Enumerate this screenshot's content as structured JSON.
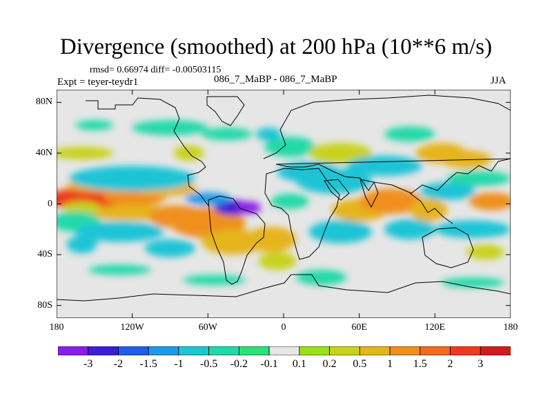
{
  "title": "Divergence (smoothed) at 200 hPa (10**6 m/s)",
  "stats_line": "rmsd= 0.66974 diff= -0.00503115",
  "expt_line": "Expt = teyer-teydr1",
  "experiments_line": "086_7_MaBP - 086_7_MaBP",
  "season": "JJA",
  "map": {
    "lon_range": [
      -180,
      180
    ],
    "lat_range": [
      -90,
      90
    ],
    "y_ticks": [
      {
        "lat": 80,
        "label": "80N"
      },
      {
        "lat": 40,
        "label": "40N"
      },
      {
        "lat": 0,
        "label": "0"
      },
      {
        "lat": -40,
        "label": "40S"
      },
      {
        "lat": -80,
        "label": "80S"
      }
    ],
    "x_ticks": [
      {
        "lon": -180,
        "label": "180"
      },
      {
        "lon": -120,
        "label": "120W"
      },
      {
        "lon": -60,
        "label": "60W"
      },
      {
        "lon": 0,
        "label": "0"
      },
      {
        "lon": 60,
        "label": "60E"
      },
      {
        "lon": 120,
        "label": "120E"
      },
      {
        "lon": 180,
        "label": "180"
      }
    ]
  },
  "colorbar": {
    "colors": [
      "#8a1ee6",
      "#3b1fd6",
      "#1f5ee8",
      "#1e9be8",
      "#1fc4d6",
      "#22d9a8",
      "#2ee07a",
      "#e6e6e6",
      "#9be01c",
      "#c8d21e",
      "#e6b41e",
      "#f08f1e",
      "#f26a1e",
      "#ee3b1e",
      "#d21c1c"
    ],
    "labels": [
      "-3",
      "-2",
      "-1.5",
      "-1",
      "-0.5",
      "-0.2",
      "-0.1",
      "0.1",
      "0.2",
      "0.5",
      "1",
      "1.5",
      "2",
      "3"
    ]
  },
  "field_blobs": [
    {
      "lon": -150,
      "lat": 4,
      "rlon": 40,
      "rlat": 9,
      "value": 2.3
    },
    {
      "lon": -118,
      "lat": 6,
      "rlon": 25,
      "rlat": 8,
      "value": 1.3
    },
    {
      "lon": -138,
      "lat": 14,
      "rlon": 35,
      "rlat": 5,
      "value": 0.6
    },
    {
      "lon": -93,
      "lat": 12,
      "rlon": 25,
      "rlat": 6,
      "value": 0.7
    },
    {
      "lon": -120,
      "lat": -7,
      "rlon": 40,
      "rlat": 6,
      "value": 0.9
    },
    {
      "lon": -160,
      "lat": -3,
      "rlon": 15,
      "rlat": 5,
      "value": 0.5
    },
    {
      "lon": -120,
      "lat": 20,
      "rlon": 50,
      "rlat": 10,
      "value": -0.6
    },
    {
      "lon": -165,
      "lat": -14,
      "rlon": 20,
      "rlat": 8,
      "value": -0.3
    },
    {
      "lon": -85,
      "lat": -10,
      "rlon": 22,
      "rlat": 9,
      "value": 1.5
    },
    {
      "lon": -60,
      "lat": -15,
      "rlon": 30,
      "rlat": 12,
      "value": 1.2
    },
    {
      "lon": -40,
      "lat": -30,
      "rlon": 25,
      "rlat": 10,
      "value": 0.9
    },
    {
      "lon": -40,
      "lat": -3,
      "rlon": 15,
      "rlat": 6,
      "value": -2.6
    },
    {
      "lon": -28,
      "lat": -3,
      "rlon": 10,
      "rlat": 5,
      "value": -3.5
    },
    {
      "lon": -60,
      "lat": 4,
      "rlon": 18,
      "rlat": 5,
      "value": -1.0
    },
    {
      "lon": -130,
      "lat": -22,
      "rlon": 35,
      "rlat": 8,
      "value": -0.9
    },
    {
      "lon": -160,
      "lat": -32,
      "rlon": 12,
      "rlat": 7,
      "value": -0.8
    },
    {
      "lon": -90,
      "lat": -35,
      "rlon": 20,
      "rlat": 7,
      "value": -0.6
    },
    {
      "lon": -75,
      "lat": 40,
      "rlon": 12,
      "rlat": 6,
      "value": 0.5
    },
    {
      "lon": -45,
      "lat": 55,
      "rlon": 20,
      "rlat": 5,
      "value": -0.3
    },
    {
      "lon": -150,
      "lat": 62,
      "rlon": 15,
      "rlat": 4,
      "value": -0.2
    },
    {
      "lon": -90,
      "lat": 60,
      "rlon": 30,
      "rlat": 6,
      "value": -0.4
    },
    {
      "lon": -130,
      "lat": -52,
      "rlon": 25,
      "rlat": 4,
      "value": -0.3
    },
    {
      "lon": -55,
      "lat": -60,
      "rlon": 25,
      "rlat": 4,
      "value": -0.3
    },
    {
      "lon": -10,
      "lat": -28,
      "rlon": 20,
      "rlat": 10,
      "value": 0.8
    },
    {
      "lon": -5,
      "lat": -45,
      "rlon": 15,
      "rlat": 7,
      "value": 0.4
    },
    {
      "lon": 5,
      "lat": 2,
      "rlon": 15,
      "rlat": 6,
      "value": -0.4
    },
    {
      "lon": 20,
      "lat": 25,
      "rlon": 25,
      "rlat": 8,
      "value": -0.8
    },
    {
      "lon": 40,
      "lat": 18,
      "rlon": 30,
      "rlat": 10,
      "value": -0.9
    },
    {
      "lon": 5,
      "lat": 45,
      "rlon": 20,
      "rlat": 8,
      "value": -0.3
    },
    {
      "lon": -12,
      "lat": 55,
      "rlon": 10,
      "rlat": 5,
      "value": -0.5
    },
    {
      "lon": 45,
      "lat": 40,
      "rlon": 25,
      "rlat": 8,
      "value": 0.5
    },
    {
      "lon": 80,
      "lat": 30,
      "rlon": 30,
      "rlat": 8,
      "value": -0.6
    },
    {
      "lon": 60,
      "lat": -5,
      "rlon": 22,
      "rlat": 9,
      "value": 0.9
    },
    {
      "lon": 85,
      "lat": 2,
      "rlon": 25,
      "rlat": 10,
      "value": 1.4
    },
    {
      "lon": 45,
      "lat": -22,
      "rlon": 25,
      "rlat": 9,
      "value": -0.7
    },
    {
      "lon": 100,
      "lat": -20,
      "rlon": 20,
      "rlat": 8,
      "value": -0.6
    },
    {
      "lon": 30,
      "lat": -58,
      "rlon": 20,
      "rlat": 6,
      "value": -0.3
    },
    {
      "lon": 115,
      "lat": -5,
      "rlon": 15,
      "rlat": 9,
      "value": 1.0
    },
    {
      "lon": 130,
      "lat": 10,
      "rlon": 22,
      "rlat": 7,
      "value": -0.9
    },
    {
      "lon": 125,
      "lat": 40,
      "rlon": 20,
      "rlat": 8,
      "value": 1.0
    },
    {
      "lon": 145,
      "lat": 35,
      "rlon": 20,
      "rlat": 7,
      "value": 0.7
    },
    {
      "lon": 165,
      "lat": 2,
      "rlon": 18,
      "rlat": 7,
      "value": 1.3
    },
    {
      "lon": 150,
      "lat": -20,
      "rlon": 30,
      "rlat": 7,
      "value": -0.6
    },
    {
      "lon": 155,
      "lat": 20,
      "rlon": 25,
      "rlat": 6,
      "value": -0.4
    },
    {
      "lon": 160,
      "lat": -38,
      "rlon": 15,
      "rlat": 6,
      "value": 0.4
    },
    {
      "lon": 150,
      "lat": -62,
      "rlon": 25,
      "rlat": 4,
      "value": -0.2
    },
    {
      "lon": 100,
      "lat": 55,
      "rlon": 20,
      "rlat": 6,
      "value": -0.2
    },
    {
      "lon": -160,
      "lat": 40,
      "rlon": 25,
      "rlat": 5,
      "value": 0.3
    }
  ]
}
